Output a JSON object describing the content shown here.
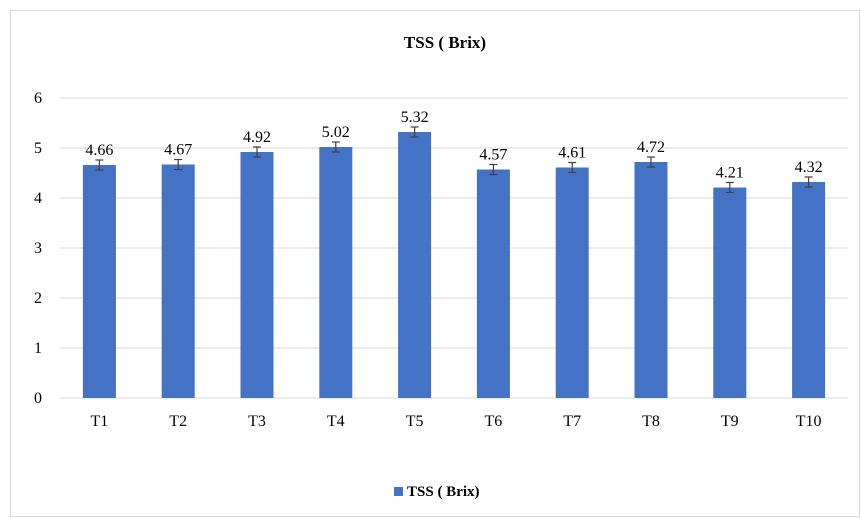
{
  "chart_data": {
    "type": "bar",
    "title": "TSS ( Brix)",
    "categories": [
      "T1",
      "T2",
      "T3",
      "T4",
      "T5",
      "T6",
      "T7",
      "T8",
      "T9",
      "T10"
    ],
    "series": [
      {
        "name": "TSS ( Brix)",
        "values": [
          4.66,
          4.67,
          4.92,
          5.02,
          5.32,
          4.57,
          4.61,
          4.72,
          4.21,
          4.32
        ],
        "error": 0.1
      }
    ],
    "data_labels": [
      "4.66",
      "4.67",
      "4.92",
      "5.02",
      "5.32",
      "4.57",
      "4.61",
      "4.72",
      "4.21",
      "4.32"
    ],
    "yticks": [
      "0",
      "1",
      "2",
      "3",
      "4",
      "5",
      "6"
    ],
    "ylim": [
      0,
      6
    ],
    "grid": true,
    "legend_position": "bottom",
    "colors": {
      "bar": "#4472C4",
      "grid": "#d9d9d9",
      "error": "#404040"
    }
  }
}
